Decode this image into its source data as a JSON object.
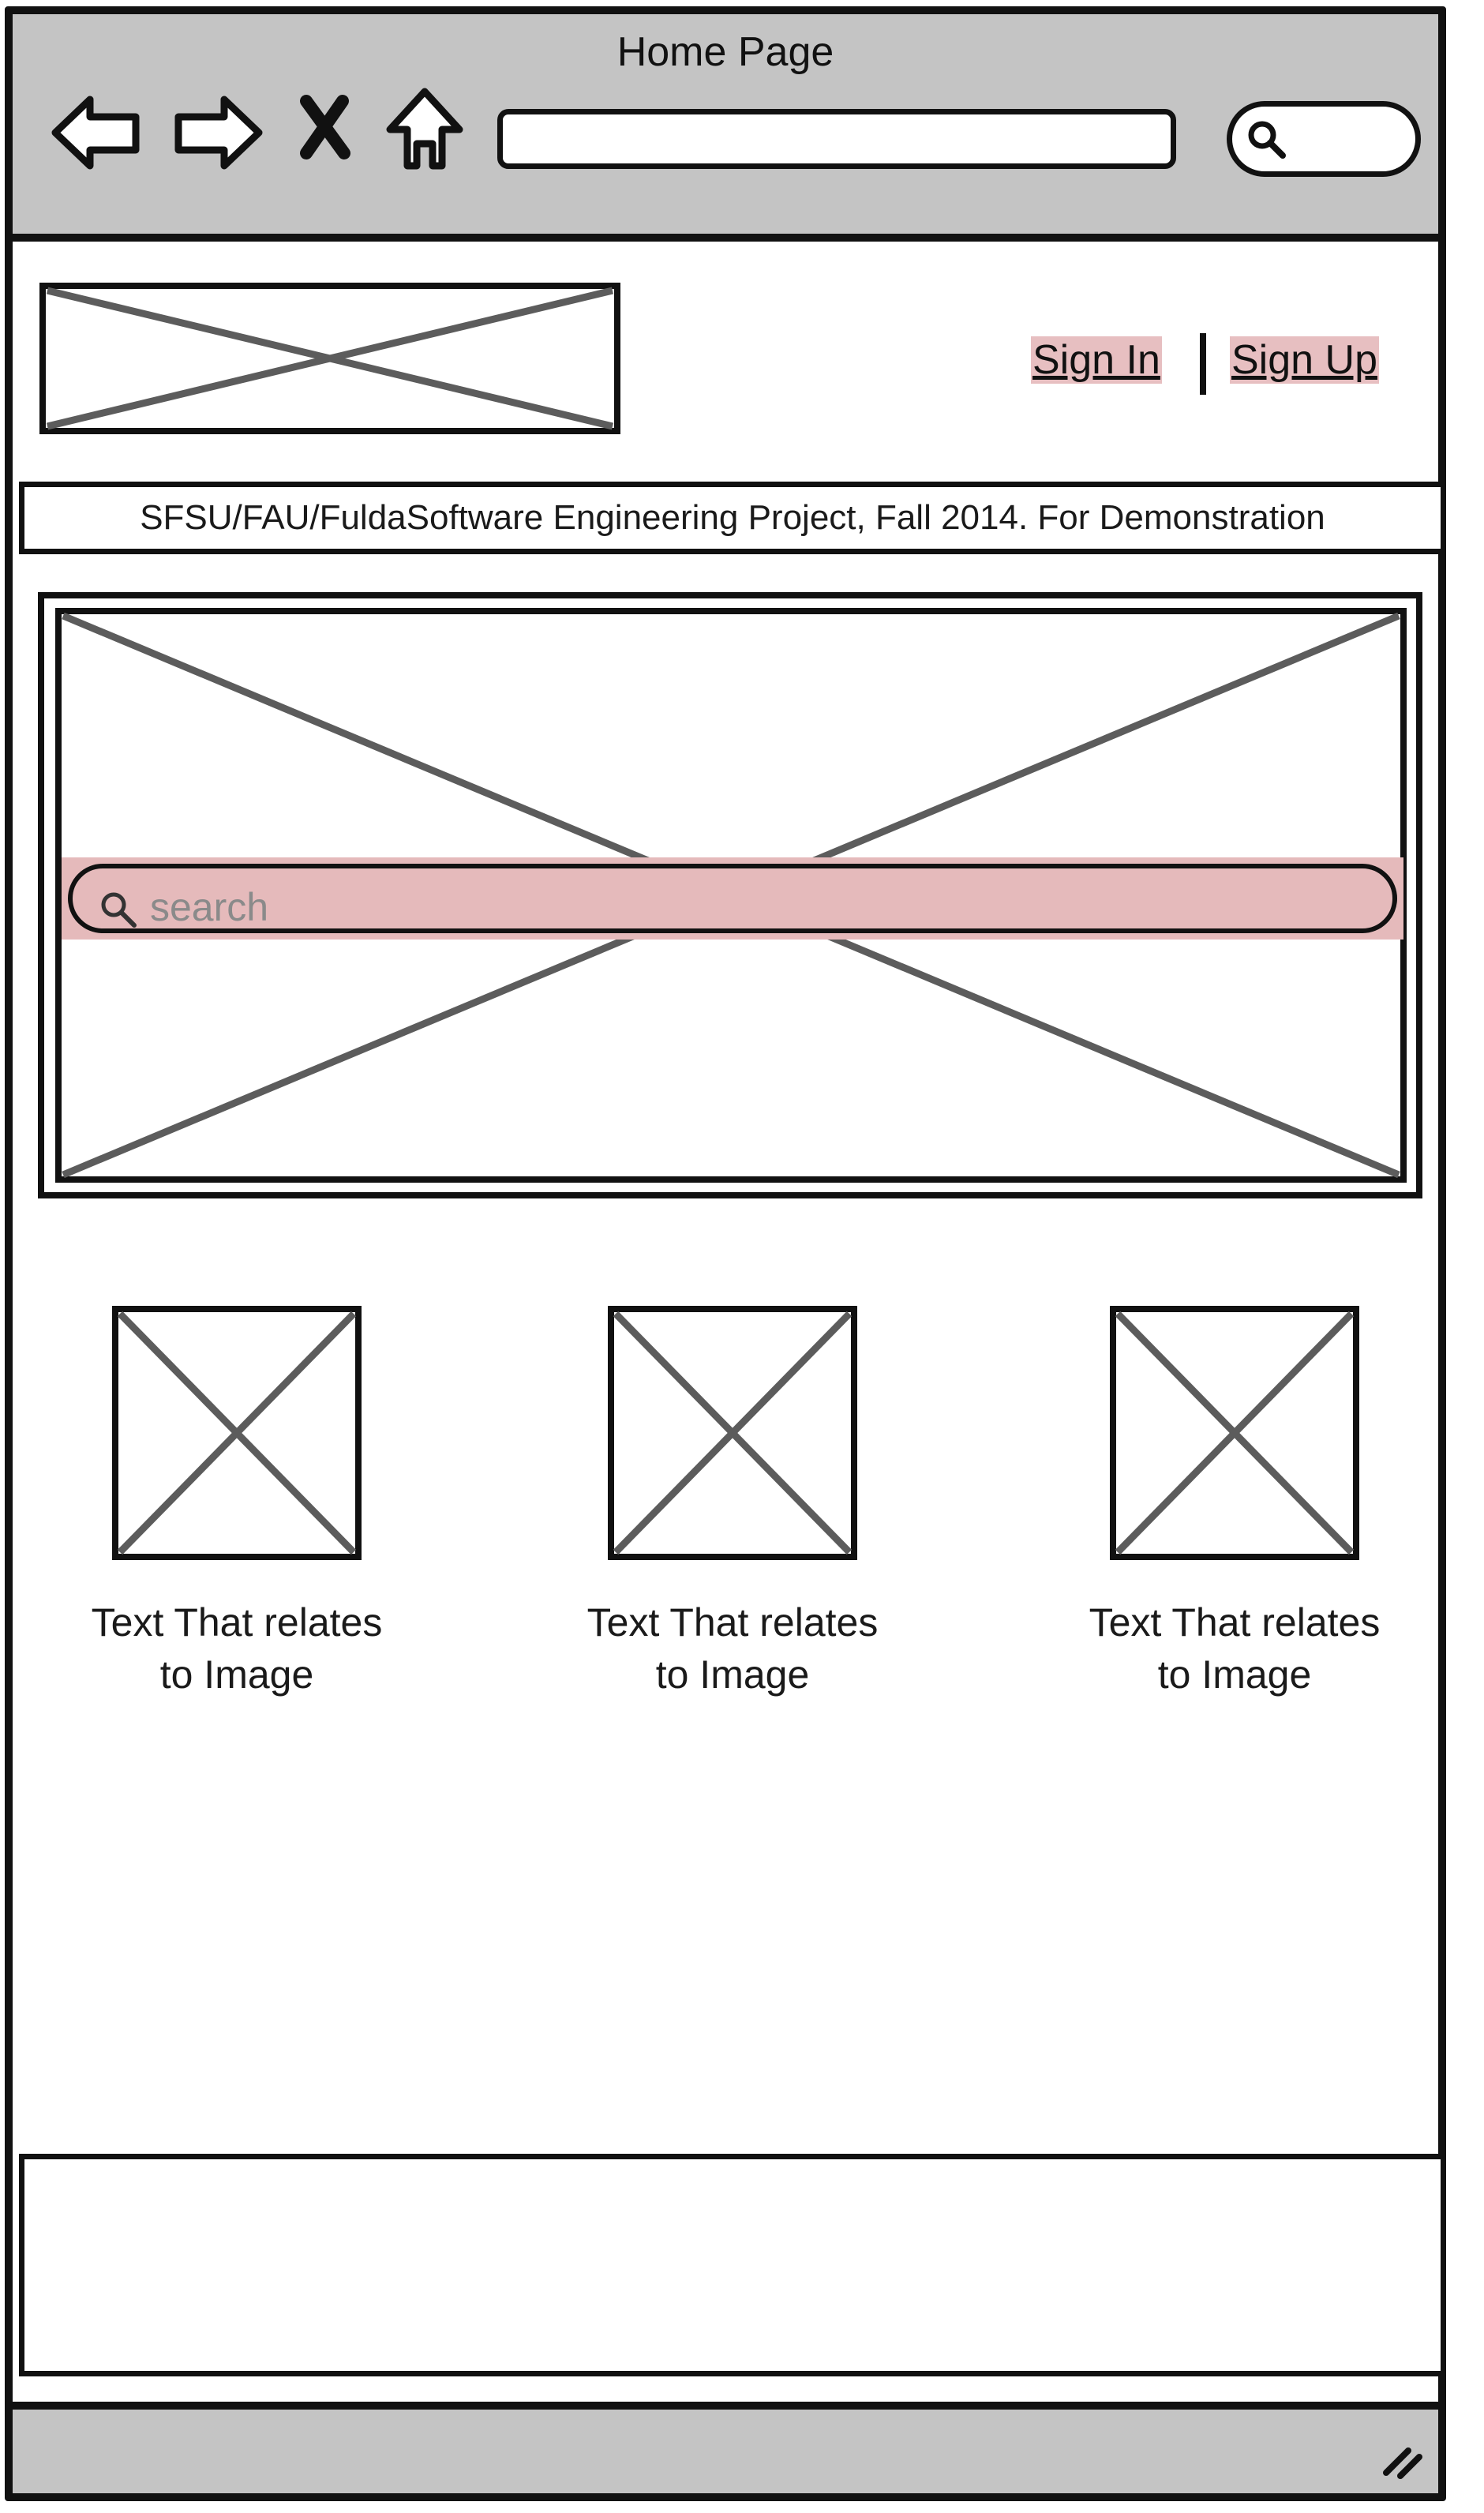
{
  "window": {
    "title": "Home Page"
  },
  "header": {
    "sign_in": "Sign In",
    "sign_up": "Sign Up"
  },
  "notice": "SFSU/FAU/FuldaSoftware Engineering Project, Fall 2014. For Demonstration",
  "hero": {
    "search_placeholder": "search"
  },
  "thumbnails": [
    {
      "line1": "Text That relates",
      "line2": "to Image"
    },
    {
      "line1": "Text That relates",
      "line2": "to Image"
    },
    {
      "line1": "Text That relates",
      "line2": "to Image"
    }
  ],
  "colors": {
    "chrome": "#c4c4c4",
    "link_highlight": "#e7bfc1",
    "search_highlight": "#e5babb",
    "placeholder_cross": "#5c5c5c"
  }
}
